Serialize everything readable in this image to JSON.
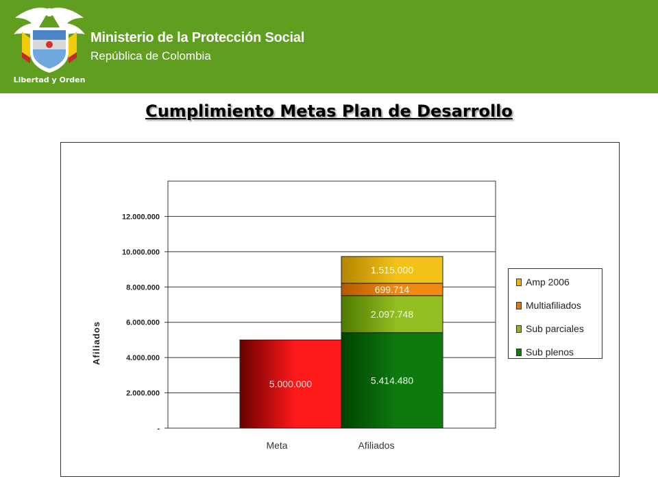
{
  "header": {
    "ministry": "Ministerio de la Protección Social",
    "republic": "República de Colombia",
    "motto": "Libertad y Orden"
  },
  "slide": {
    "title": "Cumplimiento Metas Plan de Desarrollo"
  },
  "colors": {
    "header_green": "#5f9e1f",
    "meta": "#e00000",
    "sub_plenos": "#0d7a0d",
    "sub_parciales": "#8cb81e",
    "multiafiliados": "#e07a00",
    "amp_2006": "#e6b800"
  },
  "chart_data": {
    "type": "bar",
    "stacked": true,
    "title": "",
    "ylabel": "Afiliados",
    "xlabel": "",
    "ylim": [
      0,
      14000000
    ],
    "yticks": [
      0,
      2000000,
      4000000,
      6000000,
      8000000,
      10000000,
      12000000
    ],
    "ytick_labels": [
      "-",
      "2.000.000",
      "4.000.000",
      "6.000.000",
      "8.000.000",
      "10.000.000",
      "12.000.000"
    ],
    "categories": [
      "Meta",
      "Afiliados"
    ],
    "grid": true,
    "legend_position": "right",
    "series": [
      {
        "name": "Meta",
        "in_legend": false,
        "values": [
          5000000,
          null
        ],
        "labels": [
          "5.000.000",
          ""
        ]
      },
      {
        "name": "Sub plenos",
        "in_legend": true,
        "values": [
          null,
          5414480
        ],
        "labels": [
          "",
          "5.414.480"
        ]
      },
      {
        "name": "Sub parciales",
        "in_legend": true,
        "values": [
          null,
          2097748
        ],
        "labels": [
          "",
          "2.097.748"
        ]
      },
      {
        "name": "Multiafiliados",
        "in_legend": true,
        "values": [
          null,
          699714
        ],
        "labels": [
          "",
          "699.714"
        ]
      },
      {
        "name": "Amp 2006",
        "in_legend": true,
        "values": [
          null,
          1515000
        ],
        "labels": [
          "",
          "1.515.000"
        ]
      }
    ],
    "legend_order": [
      "Amp 2006",
      "Multiafiliados",
      "Sub parciales",
      "Sub plenos"
    ]
  }
}
